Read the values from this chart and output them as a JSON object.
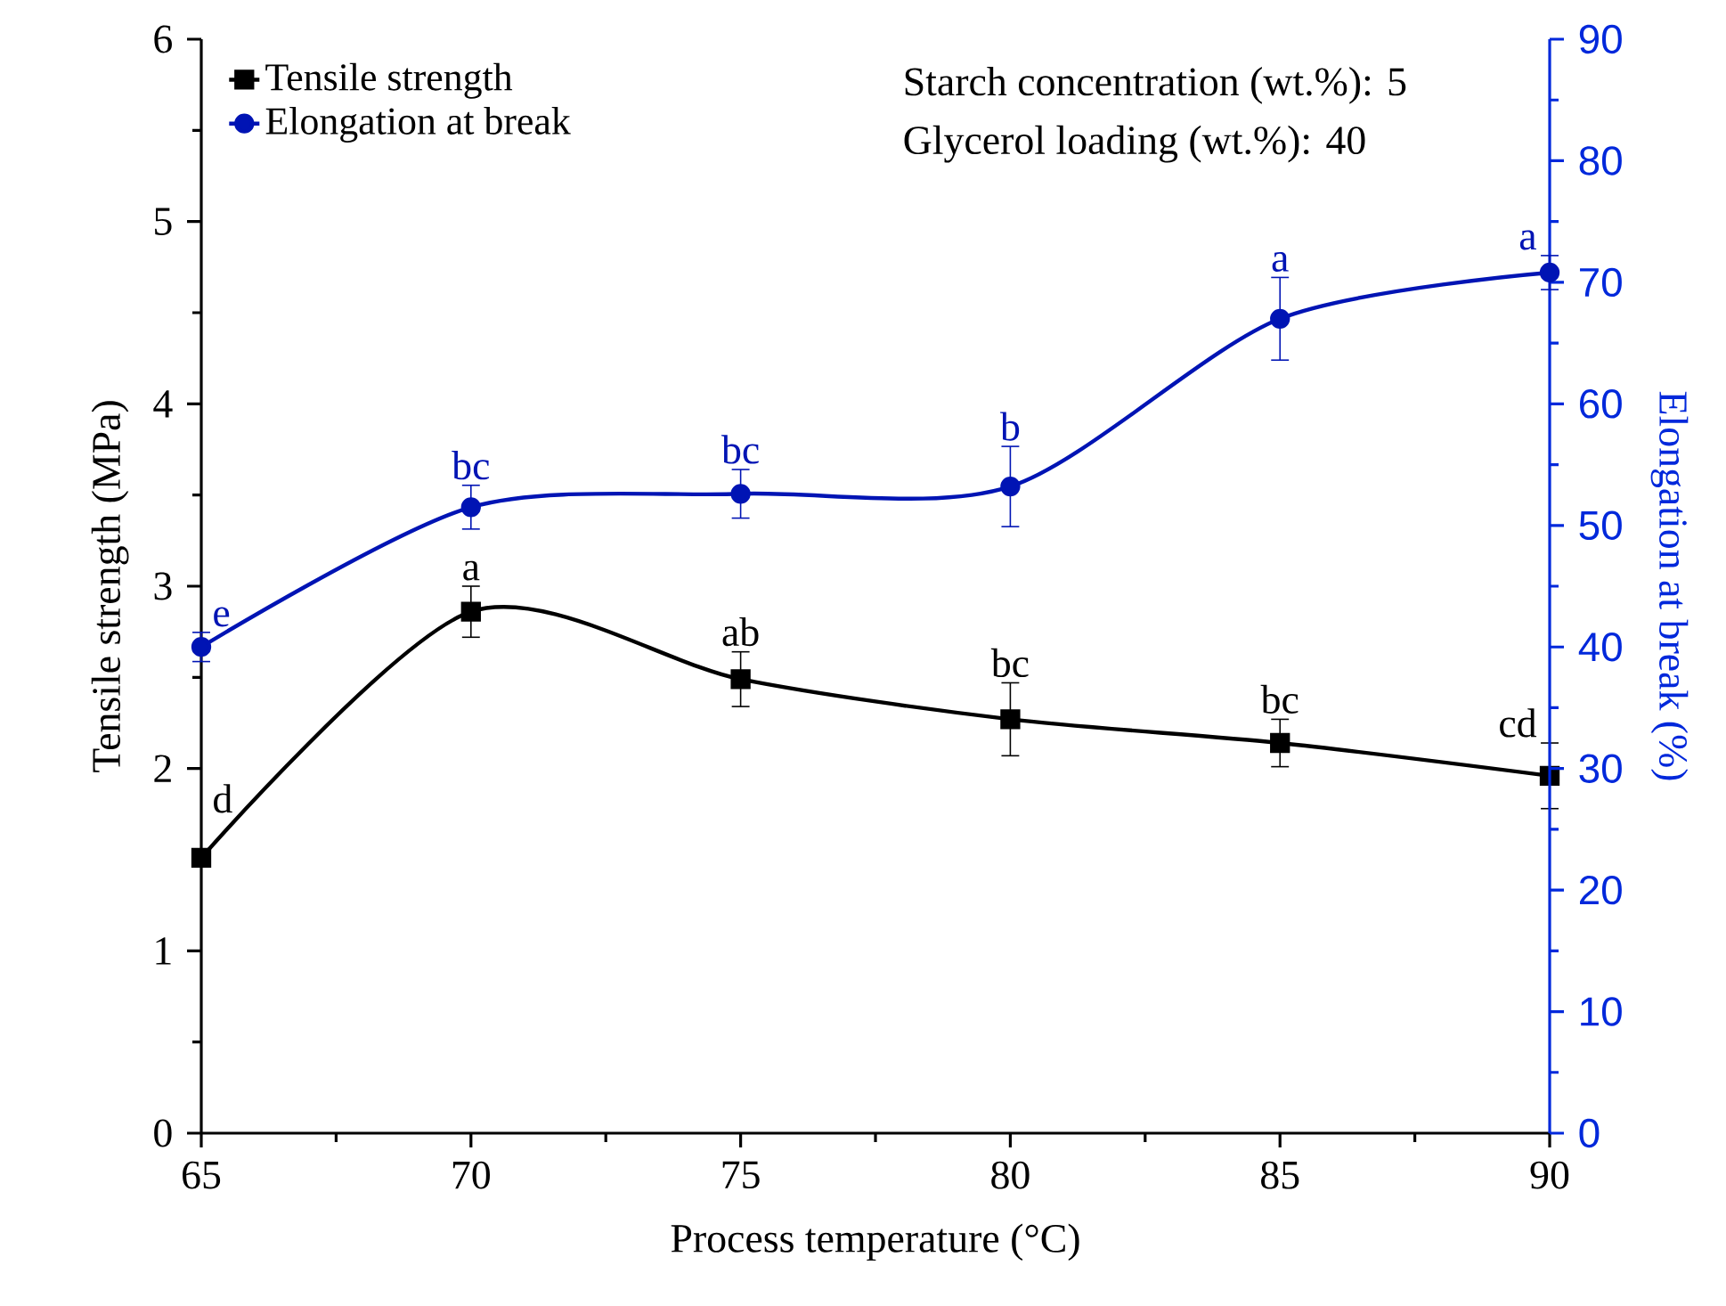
{
  "chart_data": {
    "type": "line",
    "xlabel": "Process temperature (°C)",
    "ylabel": "Tensile strength (MPa)",
    "y2label": "Elongation at break (%)",
    "x": [
      65,
      70,
      75,
      80,
      85,
      90
    ],
    "xlim": [
      65,
      90
    ],
    "xticks": [
      65,
      70,
      75,
      80,
      85,
      90
    ],
    "ylim": [
      0,
      6
    ],
    "yticks": [
      0,
      1,
      2,
      3,
      4,
      5,
      6
    ],
    "y2lim": [
      0,
      90
    ],
    "y2ticks": [
      0,
      10,
      20,
      30,
      40,
      50,
      60,
      70,
      80,
      90
    ],
    "legend": "top left",
    "annotations": [
      "Starch concentration (wt.%): 5",
      "Glycerol loading (wt.%): 40"
    ],
    "series": [
      {
        "name": "Tensile strength",
        "color": "#000000",
        "marker": "square",
        "values": [
          1.51,
          2.86,
          2.49,
          2.27,
          2.14,
          1.96
        ],
        "errors": [
          null,
          0.14,
          0.15,
          0.2,
          0.13,
          0.18
        ],
        "value_labels": [
          "d",
          "a",
          "ab",
          "bc",
          "bc",
          "cd"
        ]
      },
      {
        "name": "Elongation at break",
        "color": "#0014b4",
        "marker": "circle",
        "axis": "y2",
        "values": [
          40,
          51.5,
          52.6,
          53.2,
          67,
          70.8
        ],
        "errors": [
          1.2,
          1.8,
          2,
          3.3,
          3.4,
          1.4
        ],
        "value_labels": [
          "e",
          "bc",
          "bc",
          "b",
          "a",
          "a"
        ]
      }
    ]
  }
}
